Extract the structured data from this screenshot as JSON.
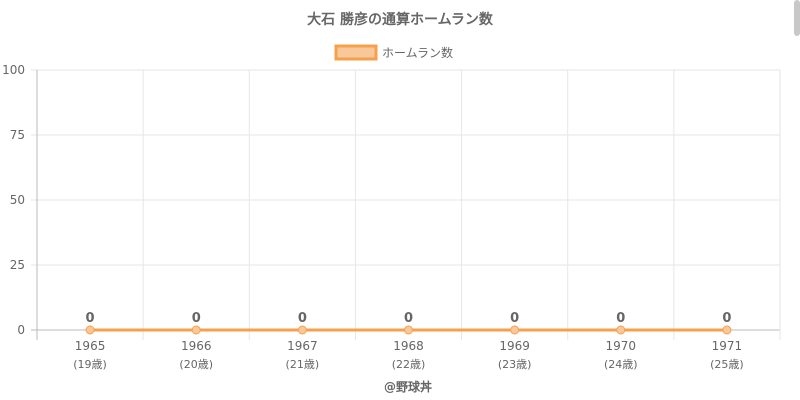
{
  "chart_data": {
    "type": "line",
    "title": "大石 勝彦の通算ホームラン数",
    "categories": [
      "1965",
      "1966",
      "1967",
      "1968",
      "1969",
      "1970",
      "1971"
    ],
    "category_sublabels": [
      "(19歳)",
      "(20歳)",
      "(21歳)",
      "(22歳)",
      "(23歳)",
      "(24歳)",
      "(25歳)"
    ],
    "series": [
      {
        "name": "ホームラン数",
        "values": [
          0,
          0,
          0,
          0,
          0,
          0,
          0
        ]
      }
    ],
    "data_labels": [
      "0",
      "0",
      "0",
      "0",
      "0",
      "0",
      "0"
    ],
    "ylim": [
      0,
      100
    ],
    "yticks": [
      0,
      25,
      50,
      75,
      100
    ],
    "grid": true,
    "legend_position": "top",
    "colors": {
      "line": "#f5a04a",
      "fill": "#f8c89a",
      "grid": "#e6e6e6",
      "axis": "#bbbbbb"
    }
  },
  "credit": "@野球丼"
}
